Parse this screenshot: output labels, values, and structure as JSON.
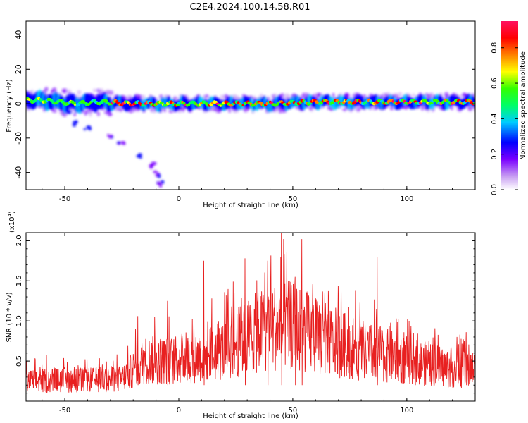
{
  "title": "C2E4.2024.100.14.58.R01",
  "colors": {
    "snr_line": "#e82020",
    "axis": "#000000"
  },
  "chart_data": [
    {
      "type": "heatmap",
      "xlabel": "Height of straight line (km)",
      "ylabel": "Frequency (Hz)",
      "xlim": [
        -67,
        130
      ],
      "ylim": [
        -50,
        48
      ],
      "xticks": [
        -50,
        0,
        50,
        100
      ],
      "yticks": [
        40,
        20,
        0,
        -20,
        -40
      ],
      "colorbar": {
        "label": "Normalized spectral amplitude",
        "range": [
          0,
          0.95
        ],
        "ticks": [
          "0.0",
          "0.2",
          "0.4",
          "0.6",
          "0.8"
        ]
      },
      "ridge": {
        "center_freq_hz": 0,
        "peak_points": [
          [
            -60,
            2
          ],
          [
            -45,
            0
          ],
          [
            -35,
            1
          ],
          [
            -20,
            0
          ],
          [
            0,
            0
          ],
          [
            20,
            0
          ],
          [
            40,
            0
          ],
          [
            60,
            1
          ],
          [
            80,
            1
          ],
          [
            100,
            1
          ],
          [
            120,
            1
          ],
          [
            130,
            1
          ]
        ]
      },
      "branch": {
        "points": [
          [
            -48,
            -4
          ],
          [
            -45,
            -11
          ],
          [
            -40,
            -14
          ],
          [
            -30,
            -18
          ],
          [
            -25,
            -22
          ],
          [
            -18,
            -30
          ],
          [
            -12,
            -36
          ],
          [
            -10,
            -41
          ],
          [
            -8,
            -47
          ]
        ]
      }
    },
    {
      "type": "line",
      "xlabel": "Height of straight line (km)",
      "ylabel": "SNR (10 * v/v)",
      "scale_label": "(x10",
      "scale_exp": "4",
      "scale_close": ")",
      "xlim": [
        -67,
        130
      ],
      "ylim": [
        0,
        2.1
      ],
      "xticks": [
        -50,
        0,
        50,
        100
      ],
      "yticks": [
        "0.5",
        "1.0",
        "1.5",
        "2.0"
      ],
      "envelope": [
        [
          -67,
          0.28
        ],
        [
          -55,
          0.3
        ],
        [
          -40,
          0.3
        ],
        [
          -25,
          0.32
        ],
        [
          -20,
          0.45
        ],
        [
          -15,
          0.58
        ],
        [
          0,
          0.58
        ],
        [
          20,
          0.72
        ],
        [
          30,
          0.92
        ],
        [
          40,
          1.05
        ],
        [
          50,
          1.08
        ],
        [
          60,
          0.92
        ],
        [
          70,
          0.82
        ],
        [
          80,
          0.72
        ],
        [
          90,
          0.66
        ],
        [
          100,
          0.58
        ],
        [
          110,
          0.52
        ],
        [
          120,
          0.46
        ],
        [
          130,
          0.45
        ]
      ],
      "spikes": [
        [
          -58,
          0.58
        ],
        [
          -18,
          1.06
        ],
        [
          -5,
          1.25
        ],
        [
          11,
          1.75
        ],
        [
          29,
          1.78
        ],
        [
          39,
          1.75
        ],
        [
          45,
          2.15
        ],
        [
          51,
          1.55
        ],
        [
          54,
          2.02
        ],
        [
          87,
          1.8
        ],
        [
          126,
          0.86
        ]
      ]
    }
  ]
}
